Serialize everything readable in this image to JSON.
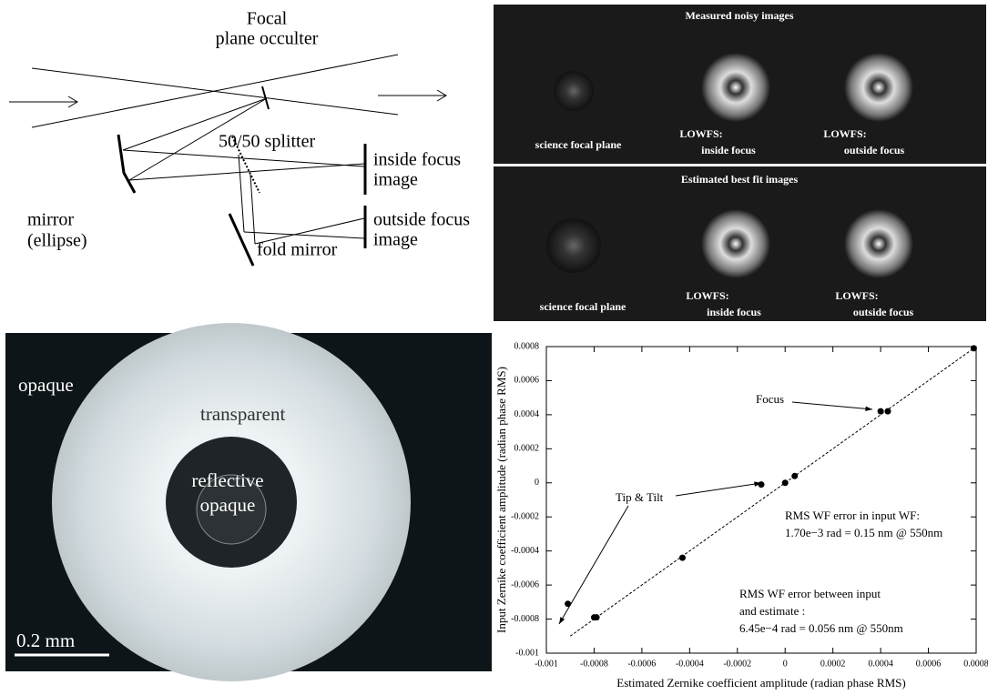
{
  "diagram": {
    "occulter": [
      "Focal",
      "plane occulter"
    ],
    "splitter": "50/50 splitter",
    "inside": [
      "inside focus",
      "image"
    ],
    "outside": [
      "outside focus",
      "image"
    ],
    "mirror": [
      "mirror",
      "(ellipse)"
    ],
    "fold": "fold mirror"
  },
  "images": [
    {
      "title": "Measured noisy images",
      "science": "science focal plane",
      "inside": [
        "LOWFS:",
        "inside focus"
      ],
      "outside": [
        "LOWFS:",
        "outside focus"
      ]
    },
    {
      "title": "Estimated best fit images",
      "science": "science focal plane",
      "inside": [
        "LOWFS:",
        "inside focus"
      ],
      "outside": [
        "LOWFS:",
        "outside focus"
      ]
    }
  ],
  "photo": {
    "outer": "opaque",
    "ring": "transparent",
    "center": [
      "reflective",
      "opaque"
    ],
    "scale": "0.2 mm"
  },
  "chart_data": {
    "type": "scatter",
    "x_label": "Estimated Zernike coefficient amplitude (radian phase RMS)",
    "y_label": "Input Zernike coefficient amplitude (radian phase RMS)",
    "xlim": [
      -0.001,
      0.0008
    ],
    "ylim": [
      -0.001,
      0.0008
    ],
    "xticks": [
      -0.001,
      -0.0008,
      -0.0006,
      -0.0004,
      -0.0002,
      0,
      0.0002,
      0.0004,
      0.0006,
      0.0008
    ],
    "yticks": [
      -0.001,
      -0.0008,
      -0.0006,
      -0.0004,
      -0.0002,
      0,
      0.0002,
      0.0004,
      0.0006,
      0.0008
    ],
    "series": [
      {
        "color": "#000000",
        "x": [
          0.00079,
          0.0004,
          0.00043,
          -0.0001,
          0,
          4e-05,
          -0.00043,
          -0.00091,
          -0.0008,
          -0.00079
        ],
        "values": [
          0.00079,
          0.00042,
          0.00042,
          -1e-05,
          0,
          4e-05,
          -0.00044,
          -0.00071,
          -0.00079,
          -0.00079
        ]
      }
    ],
    "fit_line": {
      "x": [
        -0.0009,
        0.0008
      ],
      "values": [
        -0.0009,
        0.0008
      ]
    },
    "annotations": [
      [
        "Focus"
      ],
      [
        "Tip & Tilt"
      ],
      [
        "RMS WF error in input WF:",
        "1.70e−3 rad = 0.15 nm @ 550nm"
      ],
      [
        "RMS WF error  between input",
        "and estimate :",
        "6.45e−4 rad = 0.056 nm @ 550nm"
      ]
    ]
  }
}
